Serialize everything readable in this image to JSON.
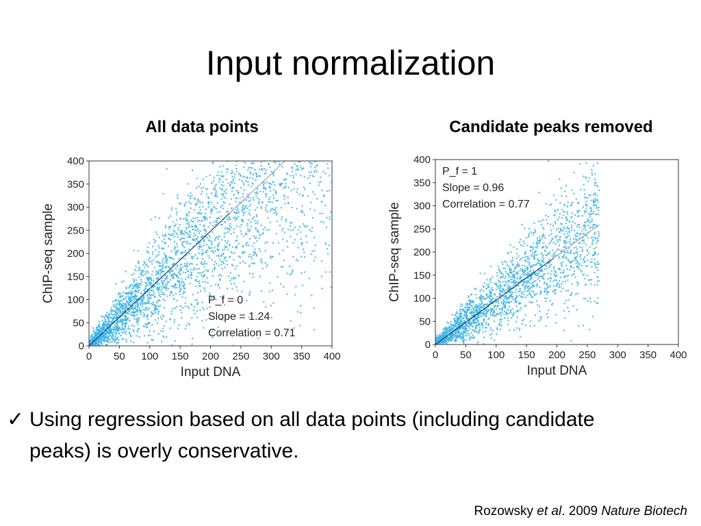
{
  "slide": {
    "title": "Input normalization",
    "bullet_check": "✓",
    "bullet": "Using regression based on all data points (including candidate peaks) is overly conservative.",
    "citation": {
      "author": "Rozowsky",
      "etal": "et al",
      "sep": ". 2009",
      "journal": "Nature Biotech"
    }
  },
  "colors": {
    "points": "#3fb4e6",
    "fit_line_dark": "#1a3c5a",
    "fit_line_light": "#b8b8b8",
    "axis": "#333333"
  },
  "chart_data": [
    {
      "type": "scatter",
      "heading": "All data points",
      "xlabel": "Input DNA",
      "ylabel": "ChIP-seq sample",
      "xlim": [
        0,
        400
      ],
      "ylim": [
        0,
        400
      ],
      "xticks": [
        0,
        50,
        100,
        150,
        200,
        250,
        300,
        350,
        400
      ],
      "yticks": [
        0,
        50,
        100,
        150,
        200,
        250,
        300,
        350,
        400
      ],
      "annotations": [
        "P_f = 0",
        "Slope = 1.24",
        "Correlation = 0.71"
      ],
      "annotation_position": "bottom-right",
      "fit_line": {
        "slope": 1.24,
        "x_end": 322
      },
      "point_cloud": {
        "n": 3200,
        "x_max": 400,
        "spread": 0.42,
        "slope": 1.24
      }
    },
    {
      "type": "scatter",
      "heading": "Candidate peaks removed",
      "xlabel": "Input DNA",
      "ylabel": "ChIP-seq sample",
      "xlim": [
        0,
        400
      ],
      "ylim": [
        0,
        400
      ],
      "xticks": [
        0,
        50,
        100,
        150,
        200,
        250,
        300,
        350,
        400
      ],
      "yticks": [
        0,
        50,
        100,
        150,
        200,
        250,
        300,
        350,
        400
      ],
      "annotations": [
        "P_f = 1",
        "Slope = 0.96",
        "Correlation = 0.77"
      ],
      "annotation_position": "top-left",
      "fit_line": {
        "slope": 0.96,
        "x_end": 270
      },
      "point_cloud": {
        "n": 2200,
        "x_max": 270,
        "spread": 0.28,
        "slope": 0.96
      }
    }
  ]
}
